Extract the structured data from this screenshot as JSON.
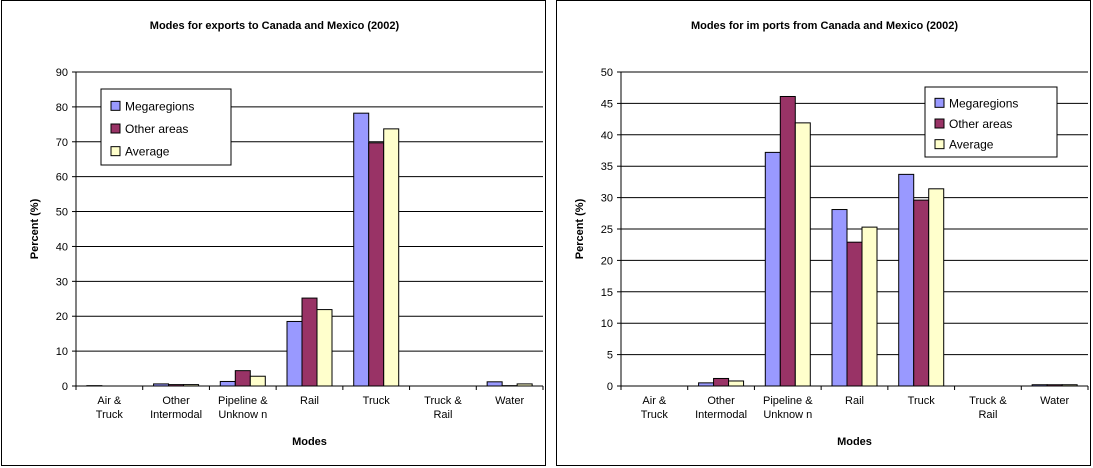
{
  "chart_data": [
    {
      "type": "bar",
      "title": "Modes for exports to Canada and Mexico (2002)",
      "xlabel": "Modes",
      "ylabel": "Percent (%)",
      "ylim": [
        0,
        90
      ],
      "yticks": [
        0,
        10,
        20,
        30,
        40,
        50,
        60,
        70,
        80,
        90
      ],
      "grid": true,
      "legend_position": "top-left",
      "categories": [
        [
          "Air &",
          "Truck"
        ],
        [
          "Other",
          "Intermodal"
        ],
        [
          "Pipeline &",
          "Unknow n"
        ],
        [
          "Rail"
        ],
        [
          "Truck"
        ],
        [
          "Truck &",
          "Rail"
        ],
        [
          "Water"
        ]
      ],
      "series": [
        {
          "name": "Megaregions",
          "color": "#9999ff",
          "values": [
            0.1,
            0.6,
            1.3,
            18.5,
            78.2,
            0,
            1.2
          ]
        },
        {
          "name": "Other areas",
          "color": "#993366",
          "values": [
            0,
            0.4,
            4.4,
            25.2,
            69.7,
            0,
            0.1
          ]
        },
        {
          "name": "Average",
          "color": "#ffffcc",
          "values": [
            0,
            0.4,
            2.8,
            21.9,
            73.7,
            0,
            0.6
          ]
        }
      ]
    },
    {
      "type": "bar",
      "title": "Modes for im ports from Canada and Mexico (2002)",
      "xlabel": "Modes",
      "ylabel": "Percent (%)",
      "ylim": [
        0,
        50
      ],
      "yticks": [
        0,
        5,
        10,
        15,
        20,
        25,
        30,
        35,
        40,
        45,
        50
      ],
      "grid": true,
      "legend_position": "top-right",
      "categories": [
        [
          "Air &",
          "Truck"
        ],
        [
          "Other",
          "Intermodal"
        ],
        [
          "Pipeline &",
          "Unknow n"
        ],
        [
          "Rail"
        ],
        [
          "Truck"
        ],
        [
          "Truck &",
          "Rail"
        ],
        [
          "Water"
        ]
      ],
      "series": [
        {
          "name": "Megaregions",
          "color": "#9999ff",
          "values": [
            0,
            0.5,
            37.2,
            28.1,
            33.7,
            0,
            0.2
          ]
        },
        {
          "name": "Other areas",
          "color": "#993366",
          "values": [
            0,
            1.2,
            46.1,
            22.9,
            29.6,
            0,
            0.2
          ]
        },
        {
          "name": "Average",
          "color": "#ffffcc",
          "values": [
            0,
            0.8,
            41.9,
            25.3,
            31.4,
            0,
            0.2
          ]
        }
      ]
    }
  ]
}
